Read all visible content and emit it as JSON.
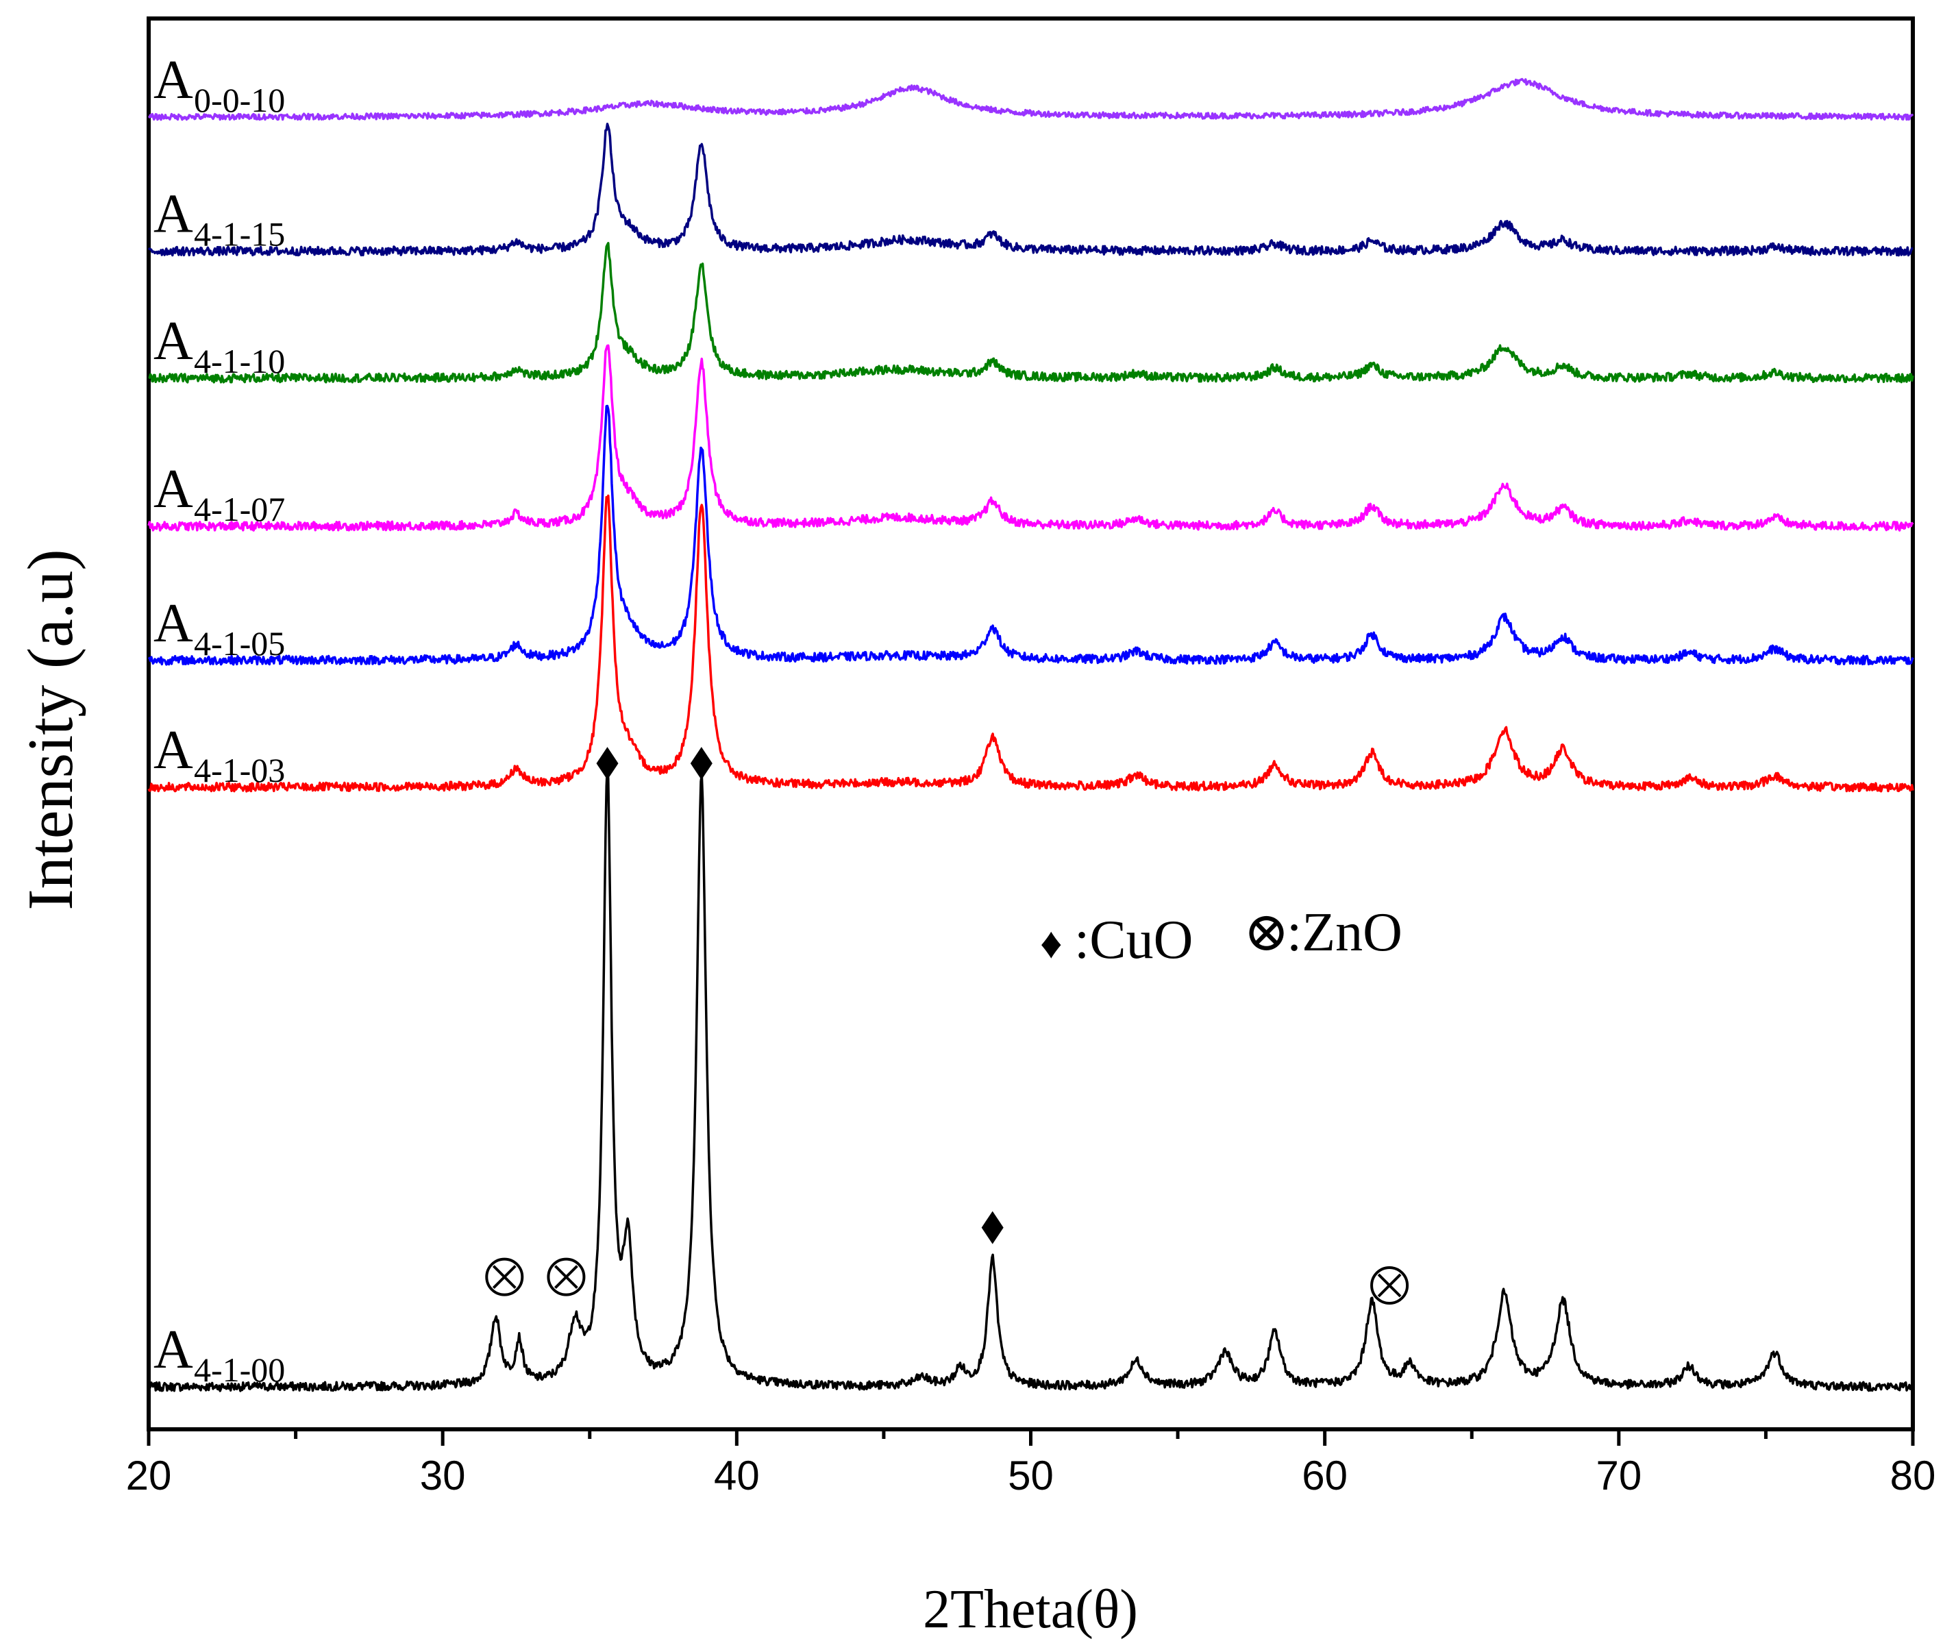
{
  "chart_data": {
    "type": "line",
    "xlabel": "2Theta(θ)",
    "ylabel": "Intensity (a.u)",
    "xlim": [
      20,
      80
    ],
    "ylim": [
      0,
      1000
    ],
    "x_ticks": [
      20,
      30,
      40,
      50,
      60,
      70,
      80
    ],
    "grid": false,
    "legend": {
      "cuo": {
        "symbol": "♦",
        "label": ":CuO"
      },
      "zno": {
        "symbol": "⊗",
        "label": ":ZnO"
      }
    },
    "series": [
      {
        "name": "A4-1-00",
        "label_main": "A",
        "label_sub": "4-1-00",
        "color": "#000000",
        "offset": 30,
        "baseline": 0,
        "noise": 3,
        "peaks": [
          [
            31.8,
            48,
            0.2
          ],
          [
            32.6,
            30,
            0.15
          ],
          [
            34.5,
            40,
            0.25
          ],
          [
            35.6,
            430,
            0.17
          ],
          [
            36.3,
            90,
            0.2
          ],
          [
            38.8,
            430,
            0.2
          ],
          [
            46.3,
            6,
            0.3
          ],
          [
            47.6,
            12,
            0.2
          ],
          [
            48.7,
            90,
            0.2
          ],
          [
            53.6,
            18,
            0.3
          ],
          [
            56.6,
            24,
            0.3
          ],
          [
            58.3,
            38,
            0.25
          ],
          [
            61.6,
            60,
            0.25
          ],
          [
            62.9,
            15,
            0.25
          ],
          [
            66.1,
            65,
            0.3
          ],
          [
            68.1,
            60,
            0.3
          ],
          [
            72.4,
            14,
            0.3
          ],
          [
            75.3,
            24,
            0.3
          ]
        ]
      },
      {
        "name": "A4-1-03",
        "label_main": "A",
        "label_sub": "4-1-03",
        "color": "#ff0000",
        "offset": 455,
        "baseline": 0,
        "noise": 3,
        "peaks": [
          [
            32.5,
            12,
            0.25
          ],
          [
            35.6,
            200,
            0.22
          ],
          [
            36.3,
            18,
            0.5
          ],
          [
            38.8,
            200,
            0.25
          ],
          [
            45.5,
            3,
            2.5
          ],
          [
            48.7,
            35,
            0.28
          ],
          [
            53.6,
            8,
            0.35
          ],
          [
            58.3,
            16,
            0.3
          ],
          [
            61.6,
            24,
            0.3
          ],
          [
            66.1,
            40,
            0.4
          ],
          [
            68.1,
            26,
            0.35
          ],
          [
            72.4,
            6,
            0.35
          ],
          [
            75.3,
            8,
            0.35
          ]
        ]
      },
      {
        "name": "A4-1-05",
        "label_main": "A",
        "label_sub": "4-1-05",
        "color": "#0000ff",
        "offset": 545,
        "baseline": 0,
        "noise": 3,
        "peaks": [
          [
            32.5,
            10,
            0.25
          ],
          [
            35.6,
            175,
            0.22
          ],
          [
            36.3,
            16,
            0.5
          ],
          [
            38.8,
            150,
            0.25
          ],
          [
            45.5,
            3,
            2.5
          ],
          [
            48.7,
            22,
            0.3
          ],
          [
            53.6,
            6,
            0.35
          ],
          [
            58.3,
            12,
            0.3
          ],
          [
            61.6,
            18,
            0.3
          ],
          [
            66.1,
            30,
            0.4
          ],
          [
            68.1,
            16,
            0.35
          ],
          [
            72.4,
            5,
            0.35
          ],
          [
            75.3,
            8,
            0.35
          ]
        ]
      },
      {
        "name": "A4-1-07",
        "label_main": "A",
        "label_sub": "4-1-07",
        "color": "#ff00ff",
        "offset": 640,
        "baseline": 0,
        "noise": 3,
        "peaks": [
          [
            32.5,
            8,
            0.25
          ],
          [
            35.6,
            125,
            0.22
          ],
          [
            36.3,
            14,
            0.5
          ],
          [
            38.8,
            115,
            0.25
          ],
          [
            45.5,
            6,
            2.0
          ],
          [
            48.7,
            16,
            0.3
          ],
          [
            53.6,
            5,
            0.35
          ],
          [
            58.3,
            10,
            0.3
          ],
          [
            61.6,
            14,
            0.3
          ],
          [
            66.1,
            28,
            0.45
          ],
          [
            68.1,
            12,
            0.35
          ],
          [
            72.4,
            4,
            0.35
          ],
          [
            75.3,
            6,
            0.35
          ]
        ]
      },
      {
        "name": "A4-1-10",
        "label_main": "A",
        "label_sub": "4-1-10",
        "color": "#008000",
        "offset": 745,
        "baseline": 0,
        "noise": 3,
        "peaks": [
          [
            32.5,
            6,
            0.25
          ],
          [
            35.6,
            90,
            0.22
          ],
          [
            36.3,
            12,
            0.5
          ],
          [
            38.8,
            80,
            0.25
          ],
          [
            45.5,
            6,
            2.0
          ],
          [
            48.7,
            10,
            0.3
          ],
          [
            53.6,
            3,
            0.35
          ],
          [
            58.3,
            7,
            0.3
          ],
          [
            61.6,
            9,
            0.3
          ],
          [
            66.1,
            22,
            0.5
          ],
          [
            68.1,
            8,
            0.35
          ],
          [
            72.4,
            3,
            0.35
          ],
          [
            75.3,
            4,
            0.35
          ]
        ]
      },
      {
        "name": "A4-1-15",
        "label_main": "A",
        "label_sub": "4-1-15",
        "color": "#000080",
        "offset": 835,
        "baseline": 0,
        "noise": 3,
        "peaks": [
          [
            32.5,
            6,
            0.25
          ],
          [
            35.6,
            85,
            0.22
          ],
          [
            36.3,
            12,
            0.5
          ],
          [
            38.8,
            75,
            0.25
          ],
          [
            45.8,
            8,
            1.8
          ],
          [
            48.7,
            10,
            0.3
          ],
          [
            58.3,
            5,
            0.3
          ],
          [
            61.6,
            7,
            0.3
          ],
          [
            66.1,
            20,
            0.5
          ],
          [
            68.1,
            7,
            0.35
          ],
          [
            75.3,
            3,
            0.35
          ]
        ]
      },
      {
        "name": "A0-0-10",
        "label_main": "A",
        "label_sub": "0-0-10",
        "color": "#9933ff",
        "offset": 930,
        "baseline": 0,
        "noise": 2,
        "peaks": [
          [
            37.0,
            9,
            2.2
          ],
          [
            46.0,
            20,
            1.5
          ],
          [
            66.7,
            25,
            1.6
          ]
        ]
      }
    ],
    "markers": [
      {
        "symbol": "♦",
        "x": 35.6,
        "y": 472
      },
      {
        "symbol": "♦",
        "x": 38.8,
        "y": 472
      },
      {
        "symbol": "♦",
        "x": 48.7,
        "y": 143
      },
      {
        "symbol": "⊗",
        "x": 32.1,
        "y": 108
      },
      {
        "symbol": "⊗",
        "x": 34.2,
        "y": 108
      },
      {
        "symbol": "⊗",
        "x": 62.2,
        "y": 102
      }
    ]
  }
}
